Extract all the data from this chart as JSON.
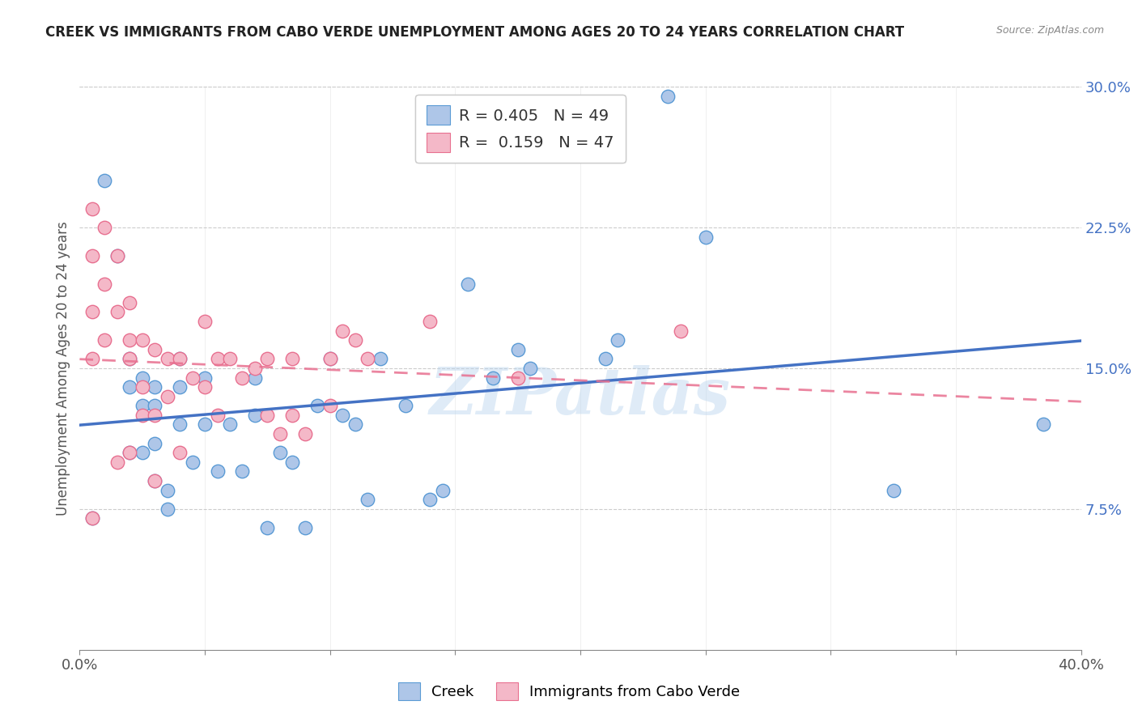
{
  "title": "CREEK VS IMMIGRANTS FROM CABO VERDE UNEMPLOYMENT AMONG AGES 20 TO 24 YEARS CORRELATION CHART",
  "source": "Source: ZipAtlas.com",
  "ylabel": "Unemployment Among Ages 20 to 24 years",
  "xmin": 0.0,
  "xmax": 0.4,
  "ymin": 0.0,
  "ymax": 0.3,
  "ytick_vals": [
    0.075,
    0.15,
    0.225,
    0.3
  ],
  "ytick_labels": [
    "7.5%",
    "15.0%",
    "22.5%",
    "30.0%"
  ],
  "xtick_show": [
    0.0,
    0.4
  ],
  "xtick_show_labels": [
    "0.0%",
    "40.0%"
  ],
  "xtick_minor_vals": [
    0.05,
    0.1,
    0.15,
    0.2,
    0.25,
    0.3,
    0.35
  ],
  "creek_fill_color": "#aec6e8",
  "creek_edge_color": "#5b9bd5",
  "cabo_fill_color": "#f4b8c8",
  "cabo_edge_color": "#e87090",
  "creek_line_color": "#4472c4",
  "cabo_line_color": "#e87090",
  "creek_R": 0.405,
  "creek_N": 49,
  "cabo_R": 0.159,
  "cabo_N": 47,
  "watermark": "ZIPatlas",
  "legend_labels": [
    "Creek",
    "Immigrants from Cabo Verde"
  ],
  "grid_color": "#cccccc",
  "creek_x": [
    0.005,
    0.01,
    0.015,
    0.02,
    0.02,
    0.02,
    0.025,
    0.025,
    0.025,
    0.03,
    0.03,
    0.03,
    0.03,
    0.035,
    0.035,
    0.04,
    0.04,
    0.04,
    0.045,
    0.05,
    0.05,
    0.055,
    0.06,
    0.065,
    0.07,
    0.07,
    0.075,
    0.08,
    0.085,
    0.09,
    0.095,
    0.1,
    0.105,
    0.11,
    0.115,
    0.12,
    0.13,
    0.14,
    0.145,
    0.155,
    0.165,
    0.175,
    0.18,
    0.21,
    0.215,
    0.235,
    0.25,
    0.325,
    0.385
  ],
  "creek_y": [
    0.07,
    0.25,
    0.21,
    0.155,
    0.14,
    0.105,
    0.145,
    0.13,
    0.105,
    0.14,
    0.13,
    0.11,
    0.09,
    0.085,
    0.075,
    0.155,
    0.14,
    0.12,
    0.1,
    0.145,
    0.12,
    0.095,
    0.12,
    0.095,
    0.145,
    0.125,
    0.065,
    0.105,
    0.1,
    0.065,
    0.13,
    0.155,
    0.125,
    0.12,
    0.08,
    0.155,
    0.13,
    0.08,
    0.085,
    0.195,
    0.145,
    0.16,
    0.15,
    0.155,
    0.165,
    0.295,
    0.22,
    0.085,
    0.12
  ],
  "cabo_x": [
    0.005,
    0.005,
    0.005,
    0.005,
    0.005,
    0.01,
    0.01,
    0.01,
    0.015,
    0.015,
    0.015,
    0.02,
    0.02,
    0.02,
    0.02,
    0.025,
    0.025,
    0.025,
    0.03,
    0.03,
    0.03,
    0.035,
    0.035,
    0.04,
    0.04,
    0.045,
    0.05,
    0.05,
    0.055,
    0.055,
    0.06,
    0.065,
    0.07,
    0.075,
    0.075,
    0.08,
    0.085,
    0.085,
    0.09,
    0.1,
    0.1,
    0.105,
    0.11,
    0.115,
    0.14,
    0.175,
    0.24
  ],
  "cabo_y": [
    0.235,
    0.21,
    0.18,
    0.155,
    0.07,
    0.225,
    0.195,
    0.165,
    0.21,
    0.18,
    0.1,
    0.185,
    0.165,
    0.155,
    0.105,
    0.165,
    0.14,
    0.125,
    0.16,
    0.125,
    0.09,
    0.155,
    0.135,
    0.155,
    0.105,
    0.145,
    0.175,
    0.14,
    0.155,
    0.125,
    0.155,
    0.145,
    0.15,
    0.155,
    0.125,
    0.115,
    0.155,
    0.125,
    0.115,
    0.155,
    0.13,
    0.17,
    0.165,
    0.155,
    0.175,
    0.145,
    0.17
  ]
}
